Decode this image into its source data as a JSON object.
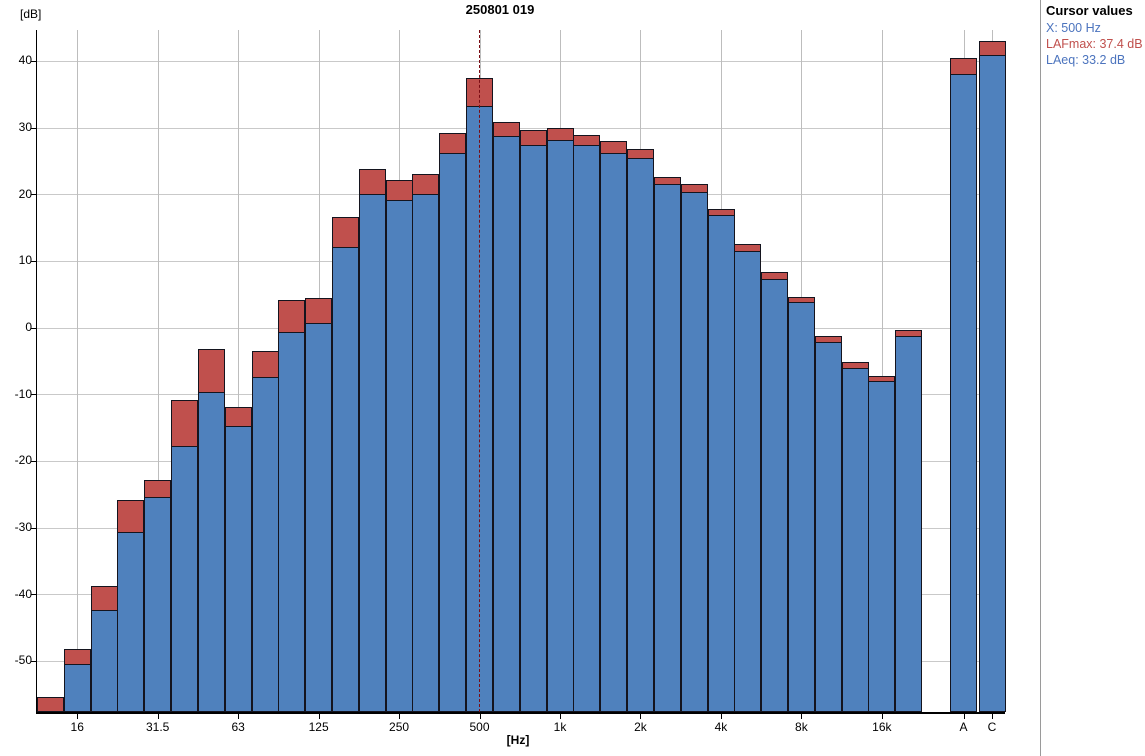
{
  "cursor_panel": {
    "title": "Cursor values",
    "items": [
      {
        "label": "X: 500 Hz",
        "color": "#4c74be"
      },
      {
        "label": "LAFmax: 37.4 dB",
        "color": "#c0504d"
      },
      {
        "label": "LAeq: 33.2 dB",
        "color": "#4c74be"
      }
    ]
  },
  "chart_data": {
    "type": "bar",
    "title": "250801 019",
    "ylabel": "[dB]",
    "xlabel": "[Hz]",
    "ylim": [
      -57.7,
      44.8
    ],
    "yticks": [
      40,
      30,
      20,
      10,
      0,
      -10,
      -20,
      -30,
      -40,
      -50
    ],
    "grid": "on",
    "legend_position": "none",
    "cursor_category": "500",
    "categories": [
      "12.5",
      "16",
      "20",
      "25",
      "31.5",
      "40",
      "50",
      "63",
      "80",
      "100",
      "125",
      "160",
      "200",
      "250",
      "315",
      "400",
      "500",
      "630",
      "800",
      "1k",
      "1.25k",
      "1.6k",
      "2k",
      "2.5k",
      "3.15k",
      "4k",
      "5k",
      "6.3k",
      "8k",
      "10k",
      "12.5k",
      "16k",
      "20k",
      "A",
      "C"
    ],
    "xticklabels": [
      "16",
      "31.5",
      "63",
      "125",
      "250",
      "500",
      "1k",
      "2k",
      "4k",
      "8k",
      "16k",
      "A",
      "C"
    ],
    "series": [
      {
        "name": "LAFmax",
        "color": "#c0504d",
        "values": [
          -55.4,
          -48.2,
          -38.8,
          -25.8,
          -22.9,
          -10.9,
          -3.2,
          -11.9,
          -3.5,
          4.2,
          4.5,
          16.6,
          23.8,
          22.2,
          23.0,
          29.2,
          37.4,
          30.8,
          29.6,
          30.0,
          28.9,
          28.0,
          26.8,
          22.6,
          21.6,
          17.8,
          12.6,
          8.4,
          4.6,
          -1.2,
          -5.1,
          -7.2,
          -0.3,
          40.4,
          43.0
        ]
      },
      {
        "name": "LAeq",
        "color": "#4f81bd",
        "values": [
          -57.7,
          -50.4,
          -42.4,
          -30.6,
          -25.4,
          -17.8,
          -9.7,
          -14.7,
          -7.4,
          -0.6,
          0.7,
          12.1,
          20.1,
          19.2,
          20.1,
          26.2,
          33.2,
          28.8,
          27.4,
          28.1,
          27.4,
          26.2,
          25.5,
          21.6,
          20.4,
          16.9,
          11.5,
          7.3,
          3.9,
          -2.1,
          -6.1,
          -8.0,
          -1.3,
          38.0,
          40.9
        ]
      }
    ]
  }
}
